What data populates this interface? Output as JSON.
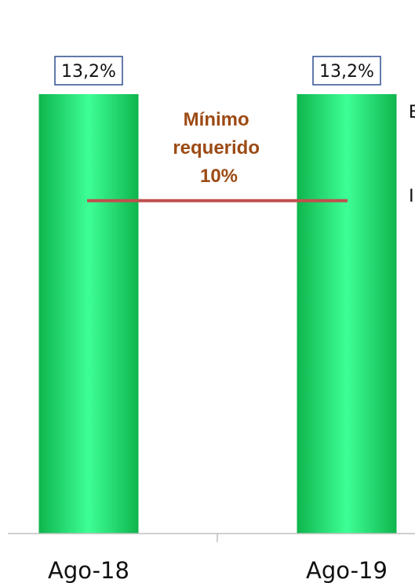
{
  "chart_data": {
    "type": "bar",
    "categories": [
      "Ago-18",
      "Ago-19"
    ],
    "values": [
      13.2,
      13.2
    ],
    "data_labels": [
      "13,2%",
      "13,2%"
    ],
    "ylim": [
      0,
      13.2
    ],
    "grid": false,
    "reference_line": {
      "value": 10,
      "color": "#c0504d",
      "annotation": [
        "Mínimo",
        "requerido",
        "10%"
      ],
      "annotation_color": "#9c4a14"
    },
    "bar_colors": {
      "edge": "#0fb54d",
      "center": "#3dff95"
    },
    "data_label_border_color": "#2f4f8f",
    "clipped_edge_glyphs": [
      "E",
      "I"
    ]
  }
}
